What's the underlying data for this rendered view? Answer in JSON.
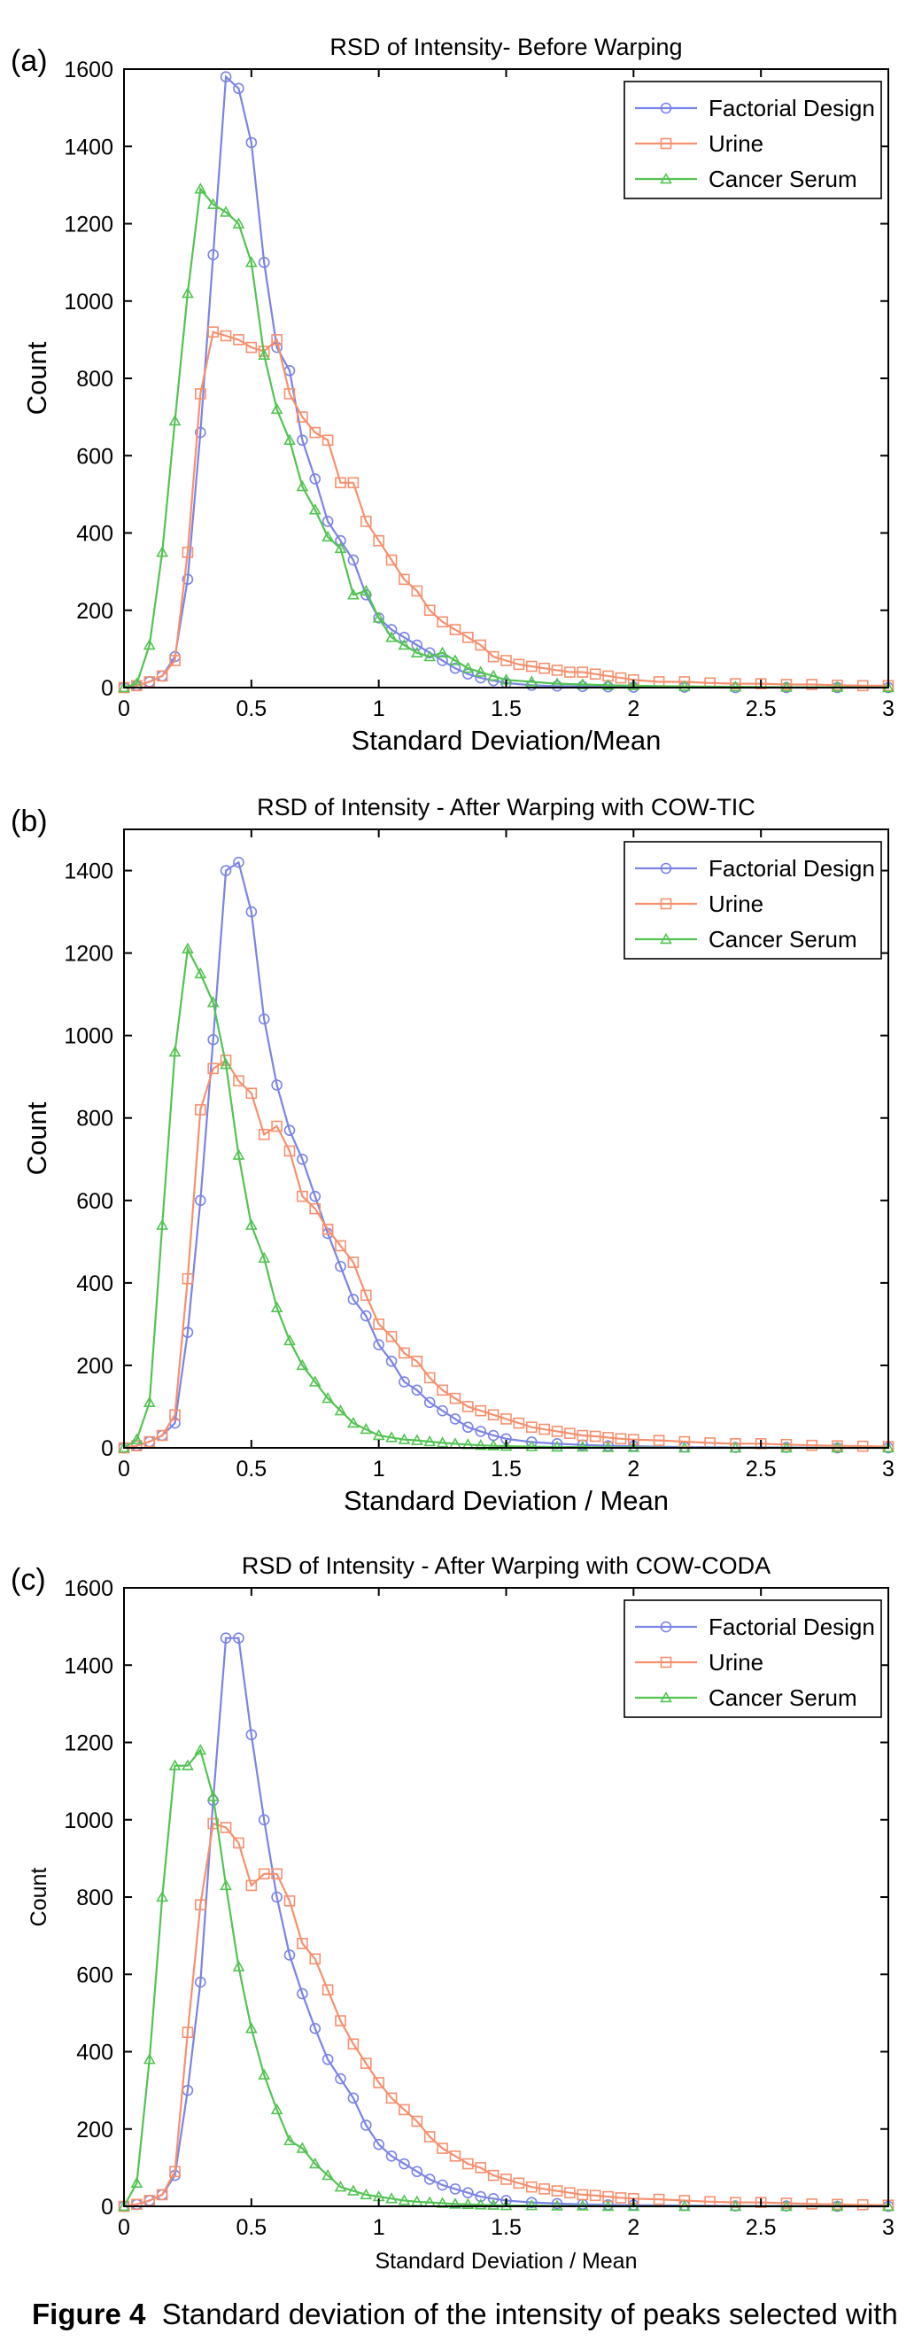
{
  "figure": {
    "caption_label": "Figure 4",
    "caption_text": "Standard deviation of the intensity of peaks selected with"
  },
  "colors": {
    "factorial": "#7b84e6",
    "urine": "#f7906e",
    "cancer": "#52c452",
    "axis": "#000000"
  },
  "chart_data": [
    {
      "type": "line",
      "panel": "(a)",
      "title": "RSD of Intensity- Before Warping",
      "xlabel": "Standard Deviation/Mean",
      "ylabel": "Count",
      "xlim": [
        0,
        3
      ],
      "ylim": [
        0,
        1600
      ],
      "xticks": [
        0,
        0.5,
        1,
        1.5,
        2,
        2.5,
        3
      ],
      "xtick_labels": [
        "0",
        "0.5",
        "1",
        "1.5",
        "2",
        "2.5",
        "3"
      ],
      "yticks": [
        0,
        200,
        400,
        600,
        800,
        1000,
        1200,
        1400,
        1600
      ],
      "ytick_labels": [
        "0",
        "200",
        "400",
        "600",
        "800",
        "1000",
        "1200",
        "1400",
        "1600"
      ],
      "legend_position": "top-right",
      "grid": false,
      "series": [
        {
          "name": "Factorial Design",
          "color": "#7b84e6",
          "marker": "circle",
          "x": [
            0,
            0.05,
            0.1,
            0.15,
            0.2,
            0.25,
            0.3,
            0.35,
            0.4,
            0.45,
            0.5,
            0.55,
            0.6,
            0.65,
            0.7,
            0.75,
            0.8,
            0.85,
            0.9,
            0.95,
            1.0,
            1.05,
            1.1,
            1.15,
            1.2,
            1.25,
            1.3,
            1.35,
            1.4,
            1.45,
            1.5,
            1.6,
            1.7,
            1.8,
            1.9,
            2.0,
            2.2,
            2.4,
            2.6,
            2.8,
            3.0
          ],
          "y": [
            0,
            5,
            15,
            30,
            80,
            280,
            660,
            1120,
            1580,
            1550,
            1410,
            1100,
            880,
            820,
            640,
            540,
            430,
            380,
            330,
            240,
            180,
            150,
            130,
            110,
            90,
            70,
            50,
            35,
            25,
            18,
            12,
            6,
            4,
            3,
            2,
            1,
            1,
            0,
            0,
            0,
            0
          ]
        },
        {
          "name": "Urine",
          "color": "#f7906e",
          "marker": "square",
          "x": [
            0,
            0.05,
            0.1,
            0.15,
            0.2,
            0.25,
            0.3,
            0.35,
            0.4,
            0.45,
            0.5,
            0.55,
            0.6,
            0.65,
            0.7,
            0.75,
            0.8,
            0.85,
            0.9,
            0.95,
            1.0,
            1.05,
            1.1,
            1.15,
            1.2,
            1.25,
            1.3,
            1.35,
            1.4,
            1.45,
            1.5,
            1.55,
            1.6,
            1.65,
            1.7,
            1.75,
            1.8,
            1.85,
            1.9,
            1.95,
            2.0,
            2.1,
            2.2,
            2.3,
            2.4,
            2.5,
            2.6,
            2.7,
            2.8,
            2.9,
            3.0
          ],
          "y": [
            0,
            5,
            15,
            30,
            70,
            350,
            760,
            920,
            910,
            900,
            880,
            870,
            900,
            760,
            700,
            660,
            640,
            530,
            530,
            430,
            380,
            330,
            280,
            250,
            200,
            170,
            150,
            130,
            110,
            80,
            70,
            60,
            55,
            50,
            45,
            40,
            40,
            35,
            30,
            25,
            20,
            15,
            15,
            12,
            10,
            10,
            8,
            8,
            6,
            5,
            5
          ]
        },
        {
          "name": "Cancer Serum",
          "color": "#52c452",
          "marker": "triangle",
          "x": [
            0,
            0.05,
            0.1,
            0.15,
            0.2,
            0.25,
            0.3,
            0.35,
            0.4,
            0.45,
            0.5,
            0.55,
            0.6,
            0.65,
            0.7,
            0.75,
            0.8,
            0.85,
            0.9,
            0.95,
            1.0,
            1.05,
            1.1,
            1.15,
            1.2,
            1.25,
            1.3,
            1.35,
            1.4,
            1.45,
            1.5,
            1.6,
            1.7,
            1.8,
            1.9,
            2.0,
            2.2,
            2.4,
            2.6,
            2.8,
            3.0
          ],
          "y": [
            0,
            10,
            110,
            350,
            690,
            1020,
            1290,
            1250,
            1230,
            1200,
            1100,
            860,
            720,
            640,
            520,
            460,
            390,
            360,
            240,
            250,
            180,
            130,
            110,
            90,
            80,
            90,
            70,
            50,
            40,
            30,
            20,
            15,
            10,
            8,
            6,
            5,
            3,
            2,
            1,
            1,
            0
          ]
        }
      ]
    },
    {
      "type": "line",
      "panel": "(b)",
      "title": "RSD of Intensity - After Warping with COW-TIC",
      "xlabel": "Standard Deviation / Mean",
      "ylabel": "Count",
      "xlim": [
        0,
        3
      ],
      "ylim": [
        0,
        1500
      ],
      "xticks": [
        0,
        0.5,
        1,
        1.5,
        2,
        2.5,
        3
      ],
      "xtick_labels": [
        "0",
        "0.5",
        "1",
        "1.5",
        "2",
        "2.5",
        "3"
      ],
      "yticks": [
        0,
        200,
        400,
        600,
        800,
        1000,
        1200,
        1400
      ],
      "ytick_labels": [
        "0",
        "200",
        "400",
        "600",
        "800",
        "1000",
        "1200",
        "1400"
      ],
      "legend_position": "top-right",
      "grid": false,
      "series": [
        {
          "name": "Factorial Design",
          "color": "#7b84e6",
          "marker": "circle",
          "x": [
            0,
            0.05,
            0.1,
            0.15,
            0.2,
            0.25,
            0.3,
            0.35,
            0.4,
            0.45,
            0.5,
            0.55,
            0.6,
            0.65,
            0.7,
            0.75,
            0.8,
            0.85,
            0.9,
            0.95,
            1.0,
            1.05,
            1.1,
            1.15,
            1.2,
            1.25,
            1.3,
            1.35,
            1.4,
            1.45,
            1.5,
            1.6,
            1.7,
            1.8,
            1.9,
            2.0,
            2.2,
            2.4,
            2.6,
            2.8,
            3.0
          ],
          "y": [
            0,
            5,
            15,
            30,
            60,
            280,
            600,
            990,
            1400,
            1420,
            1300,
            1040,
            880,
            770,
            700,
            610,
            520,
            440,
            360,
            320,
            250,
            210,
            160,
            140,
            110,
            90,
            70,
            50,
            40,
            30,
            22,
            14,
            10,
            7,
            5,
            4,
            2,
            1,
            1,
            0,
            0
          ]
        },
        {
          "name": "Urine",
          "color": "#f7906e",
          "marker": "square",
          "x": [
            0,
            0.05,
            0.1,
            0.15,
            0.2,
            0.25,
            0.3,
            0.35,
            0.4,
            0.45,
            0.5,
            0.55,
            0.6,
            0.65,
            0.7,
            0.75,
            0.8,
            0.85,
            0.9,
            0.95,
            1.0,
            1.05,
            1.1,
            1.15,
            1.2,
            1.25,
            1.3,
            1.35,
            1.4,
            1.45,
            1.5,
            1.55,
            1.6,
            1.65,
            1.7,
            1.75,
            1.8,
            1.85,
            1.9,
            1.95,
            2.0,
            2.1,
            2.2,
            2.3,
            2.4,
            2.5,
            2.6,
            2.7,
            2.8,
            2.9,
            3.0
          ],
          "y": [
            0,
            5,
            15,
            30,
            80,
            410,
            820,
            920,
            940,
            890,
            860,
            760,
            780,
            720,
            610,
            580,
            530,
            490,
            450,
            370,
            300,
            270,
            230,
            210,
            170,
            140,
            120,
            100,
            90,
            80,
            70,
            60,
            50,
            45,
            40,
            35,
            30,
            28,
            25,
            22,
            20,
            18,
            15,
            12,
            10,
            10,
            8,
            6,
            5,
            4,
            3
          ]
        },
        {
          "name": "Cancer Serum",
          "color": "#52c452",
          "marker": "triangle",
          "x": [
            0,
            0.05,
            0.1,
            0.15,
            0.2,
            0.25,
            0.3,
            0.35,
            0.4,
            0.45,
            0.5,
            0.55,
            0.6,
            0.65,
            0.7,
            0.75,
            0.8,
            0.85,
            0.9,
            0.95,
            1.0,
            1.05,
            1.1,
            1.15,
            1.2,
            1.25,
            1.3,
            1.35,
            1.4,
            1.45,
            1.5,
            1.6,
            1.7,
            1.8,
            1.9,
            2.0,
            2.2,
            2.4,
            2.6,
            2.8,
            3.0
          ],
          "y": [
            0,
            20,
            110,
            540,
            960,
            1210,
            1150,
            1080,
            930,
            710,
            540,
            460,
            340,
            260,
            200,
            160,
            120,
            90,
            60,
            45,
            30,
            25,
            20,
            18,
            15,
            12,
            10,
            8,
            6,
            5,
            4,
            3,
            2,
            2,
            1,
            1,
            0,
            0,
            0,
            0,
            0
          ]
        }
      ]
    },
    {
      "type": "line",
      "panel": "(c)",
      "title": "RSD of Intensity - After Warping with COW-CODA",
      "xlabel": "Standard Deviation / Mean",
      "ylabel": "Count",
      "xlim": [
        0,
        3
      ],
      "ylim": [
        0,
        1600
      ],
      "xticks": [
        0,
        0.5,
        1,
        1.5,
        2,
        2.5,
        3
      ],
      "xtick_labels": [
        "0",
        "0.5",
        "1",
        "1.5",
        "2",
        "2.5",
        "3"
      ],
      "yticks": [
        0,
        200,
        400,
        600,
        800,
        1000,
        1200,
        1400,
        1600
      ],
      "ytick_labels": [
        "0",
        "200",
        "400",
        "600",
        "800",
        "1000",
        "1200",
        "1400",
        "1600"
      ],
      "legend_position": "top-right",
      "grid": false,
      "series": [
        {
          "name": "Factorial Design",
          "color": "#7b84e6",
          "marker": "circle",
          "x": [
            0,
            0.05,
            0.1,
            0.15,
            0.2,
            0.25,
            0.3,
            0.35,
            0.4,
            0.45,
            0.5,
            0.55,
            0.6,
            0.65,
            0.7,
            0.75,
            0.8,
            0.85,
            0.9,
            0.95,
            1.0,
            1.05,
            1.1,
            1.15,
            1.2,
            1.25,
            1.3,
            1.35,
            1.4,
            1.45,
            1.5,
            1.6,
            1.7,
            1.8,
            1.9,
            2.0,
            2.2,
            2.4,
            2.6,
            2.8,
            3.0
          ],
          "y": [
            0,
            5,
            15,
            30,
            80,
            300,
            580,
            1050,
            1470,
            1470,
            1220,
            1000,
            800,
            650,
            550,
            460,
            380,
            330,
            280,
            210,
            160,
            130,
            110,
            90,
            70,
            55,
            45,
            35,
            25,
            20,
            15,
            10,
            7,
            5,
            4,
            3,
            2,
            1,
            1,
            0,
            0
          ]
        },
        {
          "name": "Urine",
          "color": "#f7906e",
          "marker": "square",
          "x": [
            0,
            0.05,
            0.1,
            0.15,
            0.2,
            0.25,
            0.3,
            0.35,
            0.4,
            0.45,
            0.5,
            0.55,
            0.6,
            0.65,
            0.7,
            0.75,
            0.8,
            0.85,
            0.9,
            0.95,
            1.0,
            1.05,
            1.1,
            1.15,
            1.2,
            1.25,
            1.3,
            1.35,
            1.4,
            1.45,
            1.5,
            1.55,
            1.6,
            1.65,
            1.7,
            1.75,
            1.8,
            1.85,
            1.9,
            1.95,
            2.0,
            2.1,
            2.2,
            2.3,
            2.4,
            2.5,
            2.6,
            2.7,
            2.8,
            2.9,
            3.0
          ],
          "y": [
            0,
            5,
            15,
            30,
            90,
            450,
            780,
            990,
            980,
            940,
            830,
            860,
            860,
            790,
            680,
            640,
            560,
            480,
            420,
            370,
            320,
            280,
            250,
            220,
            180,
            150,
            130,
            110,
            100,
            80,
            70,
            60,
            50,
            45,
            40,
            35,
            30,
            28,
            25,
            22,
            20,
            18,
            15,
            12,
            10,
            10,
            8,
            6,
            5,
            4,
            3
          ]
        },
        {
          "name": "Cancer Serum",
          "color": "#52c452",
          "marker": "triangle",
          "x": [
            0,
            0.05,
            0.1,
            0.15,
            0.2,
            0.25,
            0.3,
            0.35,
            0.4,
            0.45,
            0.5,
            0.55,
            0.6,
            0.65,
            0.7,
            0.75,
            0.8,
            0.85,
            0.9,
            0.95,
            1.0,
            1.05,
            1.1,
            1.15,
            1.2,
            1.25,
            1.3,
            1.35,
            1.4,
            1.45,
            1.5,
            1.6,
            1.7,
            1.8,
            1.9,
            2.0,
            2.2,
            2.4,
            2.6,
            2.8,
            3.0
          ],
          "y": [
            0,
            60,
            380,
            800,
            1140,
            1140,
            1180,
            1060,
            830,
            620,
            460,
            340,
            250,
            170,
            150,
            110,
            80,
            50,
            40,
            30,
            25,
            20,
            15,
            12,
            10,
            8,
            6,
            5,
            4,
            3,
            2,
            2,
            1,
            1,
            0,
            0,
            0,
            0,
            0,
            0,
            0
          ]
        }
      ]
    }
  ]
}
